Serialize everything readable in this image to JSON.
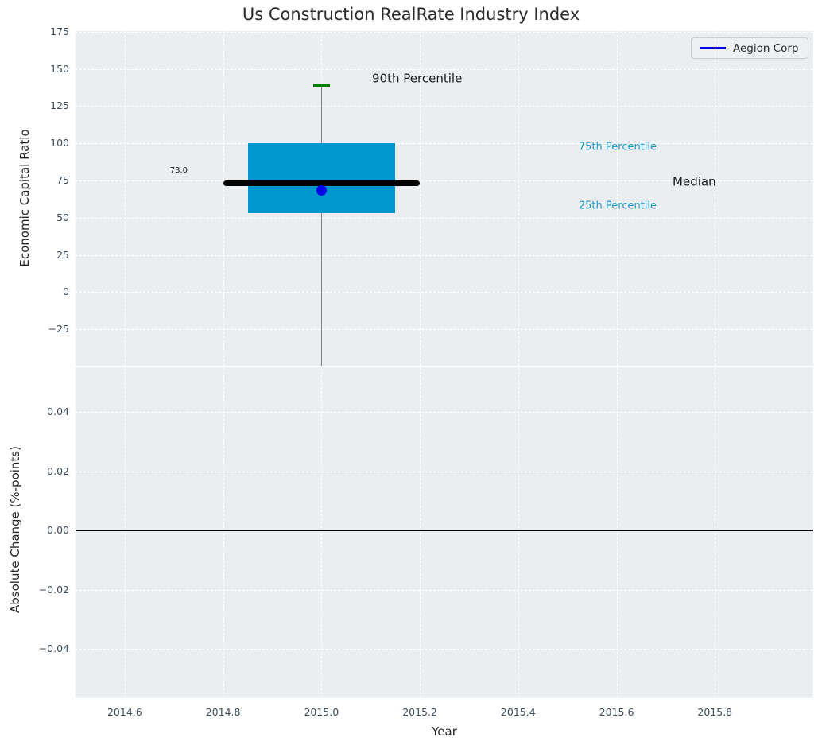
{
  "title": "Us Construction RealRate Industry Index",
  "legend": {
    "position": "upper right",
    "items": [
      {
        "label": "Aegion Corp",
        "color": "#0202e8"
      }
    ]
  },
  "colors": {
    "figure_background": "#ffffff",
    "axes_background": "#eaeef0",
    "grid": "#ffffff",
    "box_fill": "#0098cf",
    "median_line": "#000000",
    "whisker": "#7f8285",
    "whisker_cap": "#008000",
    "data_point": "#0202e8",
    "zero_line": "#000000",
    "tick_label": "#3d4b5c",
    "percentile_label": "#1d9bc8",
    "annotation_text": "#1a1a1a",
    "title_text": "#2b2b2b"
  },
  "chart_data": [
    {
      "type": "box",
      "subplot": "top",
      "ylabel": "Economic Capital Ratio",
      "grid": true,
      "xlim": [
        2014.5,
        2016.0
      ],
      "ylim": [
        -49.5,
        175.5
      ],
      "yticks": [
        {
          "v": 175,
          "label": "175"
        },
        {
          "v": 150,
          "label": "150"
        },
        {
          "v": 125,
          "label": "125"
        },
        {
          "v": 100,
          "label": "100"
        },
        {
          "v": 75,
          "label": "75"
        },
        {
          "v": 50,
          "label": "50"
        },
        {
          "v": 25,
          "label": "25"
        },
        {
          "v": 0,
          "label": "0"
        },
        {
          "v": -25,
          "label": "−25"
        }
      ],
      "xticks": [
        {
          "v": 2014.6,
          "label": "2014.6"
        },
        {
          "v": 2014.8,
          "label": "2014.8"
        },
        {
          "v": 2015.0,
          "label": "2015.0"
        },
        {
          "v": 2015.2,
          "label": "2015.2"
        },
        {
          "v": 2015.4,
          "label": "2015.4"
        },
        {
          "v": 2015.6,
          "label": "2015.6"
        },
        {
          "v": 2015.8,
          "label": "2015.8"
        }
      ],
      "boxes": [
        {
          "x": 2015.0,
          "q1": 52.9,
          "median": 73.0,
          "q3": 100.3,
          "p90": 138.6,
          "whisker_low_clipped_below_axis": true,
          "box_halfwidth": 0.15,
          "median_halfwidth": 0.2,
          "cap_halfwidth": 0.017
        }
      ],
      "points": [
        {
          "series": "Aegion Corp",
          "x": 2015.0,
          "y": 68.5
        }
      ],
      "annotations": [
        {
          "text": "90th Percentile",
          "x": 2015.103,
          "y": 143.4,
          "size": 15,
          "color": "#1a1a1a",
          "align": "left"
        },
        {
          "text": "73.0",
          "x": 2014.71,
          "y": 81.2,
          "size": 10,
          "color": "#1a1a1a",
          "align": "center"
        },
        {
          "text": "75th Percentile",
          "x": 2015.523,
          "y": 97.5,
          "size": 13,
          "color": "#1d9bc8",
          "align": "left"
        },
        {
          "text": "Median",
          "x": 2015.714,
          "y": 74.0,
          "size": 15,
          "color": "#1a1a1a",
          "align": "left"
        },
        {
          "text": "25th Percentile",
          "x": 2015.523,
          "y": 57.7,
          "size": 13,
          "color": "#1d9bc8",
          "align": "left"
        }
      ]
    },
    {
      "type": "line",
      "subplot": "bottom",
      "ylabel": "Absolute Change (%-points)",
      "xlabel": "Year",
      "grid": true,
      "xlim": [
        2014.5,
        2016.0
      ],
      "ylim": [
        -0.0565,
        0.055
      ],
      "yticks": [
        {
          "v": 0.04,
          "label": "0.04"
        },
        {
          "v": 0.02,
          "label": "0.02"
        },
        {
          "v": 0.0,
          "label": "0.00"
        },
        {
          "v": -0.02,
          "label": "−0.02"
        },
        {
          "v": -0.04,
          "label": "−0.04"
        }
      ],
      "xticks": [
        {
          "v": 2014.6,
          "label": "2014.6"
        },
        {
          "v": 2014.8,
          "label": "2014.8"
        },
        {
          "v": 2015.0,
          "label": "2015.0"
        },
        {
          "v": 2015.2,
          "label": "2015.2"
        },
        {
          "v": 2015.4,
          "label": "2015.4"
        },
        {
          "v": 2015.6,
          "label": "2015.6"
        },
        {
          "v": 2015.8,
          "label": "2015.8"
        }
      ],
      "zero_line": 0.0,
      "series": []
    }
  ]
}
